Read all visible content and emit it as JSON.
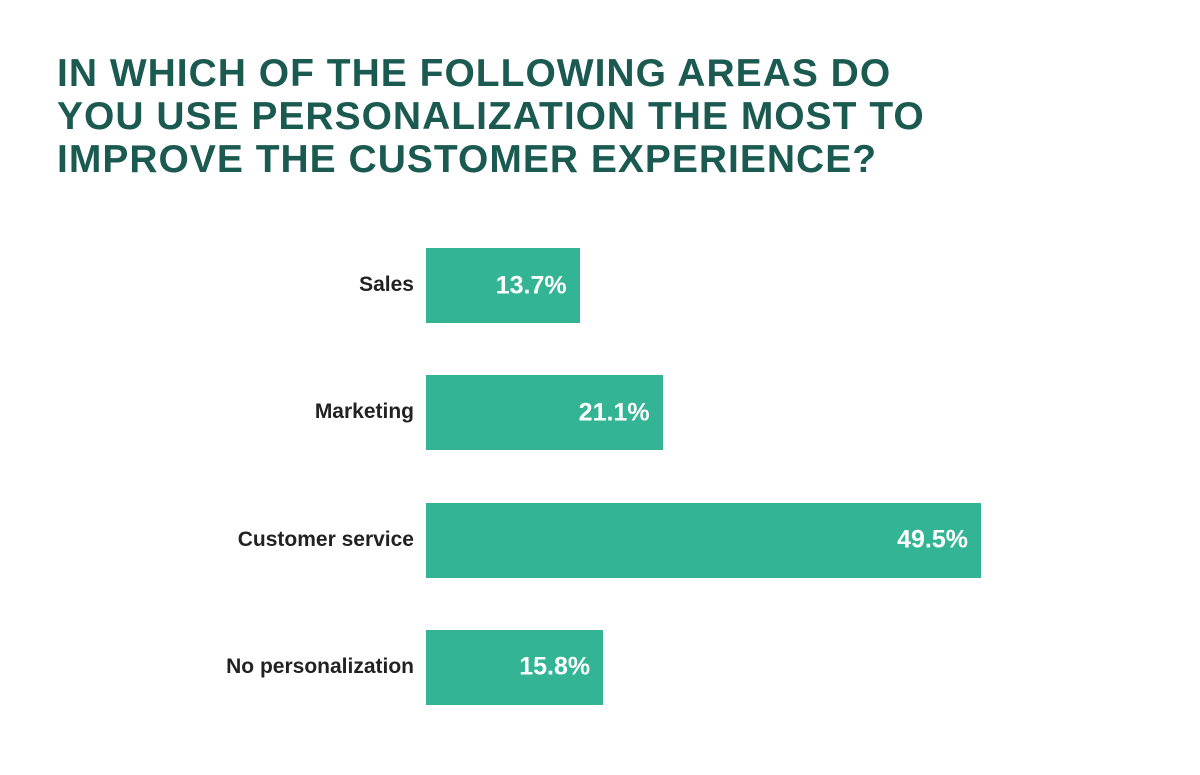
{
  "chart_data": {
    "type": "bar",
    "orientation": "horizontal",
    "title_lines": [
      "IN WHICH OF THE FOLLOWING AREAS DO",
      "YOU USE PERSONALIZATION THE MOST TO",
      "IMPROVE THE CUSTOMER EXPERIENCE?"
    ],
    "categories": [
      "Sales",
      "Marketing",
      "Customer service",
      "No personalization"
    ],
    "values": [
      13.7,
      21.1,
      49.5,
      15.8
    ],
    "data_labels": [
      "13.7%",
      "21.1%",
      "49.5%",
      "15.8%"
    ],
    "unit": "%",
    "grid": false,
    "colors": {
      "bar": "#33b595",
      "title": "#1b5a50",
      "label": "#222222"
    }
  }
}
